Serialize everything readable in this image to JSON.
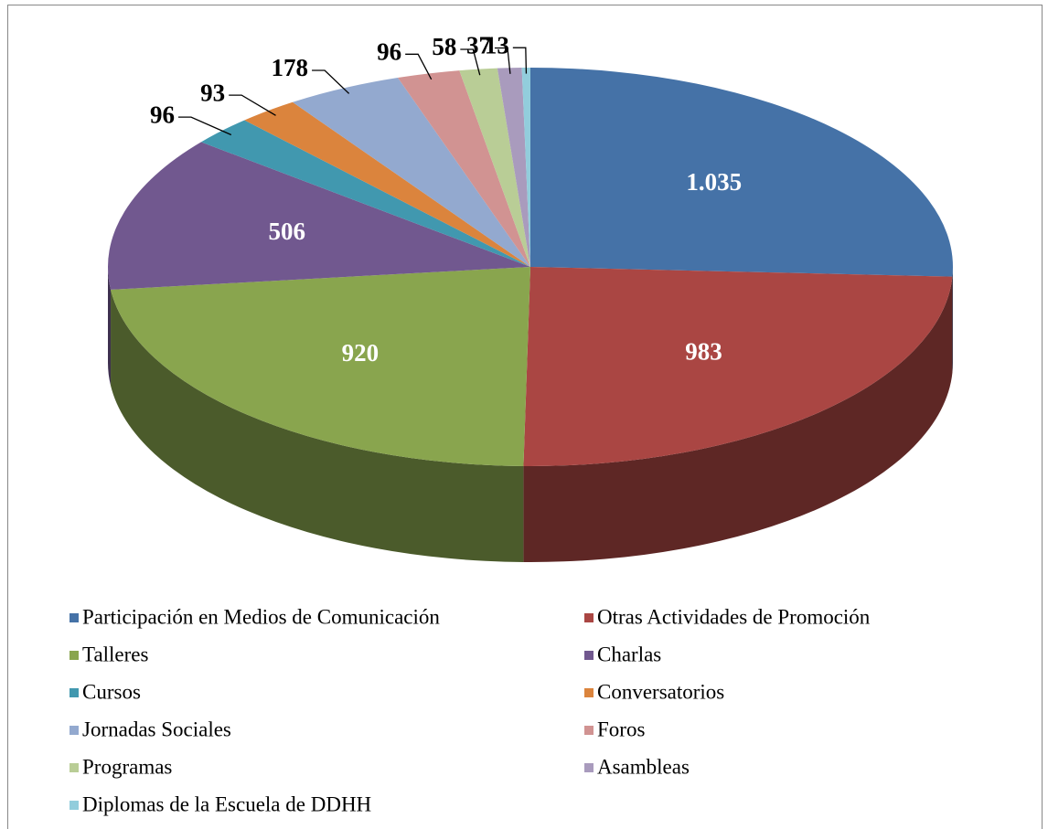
{
  "chart_data": {
    "type": "pie",
    "categories": [
      "Participación en Medios de Comunicación",
      "Otras Actividades de Promoción",
      "Talleres",
      "Charlas",
      "Cursos",
      "Conversatorios",
      "Jornadas Sociales",
      "Foros",
      "Programas",
      "Asambleas",
      "Diplomas de la Escuela de DDHH"
    ],
    "values": [
      1035,
      983,
      920,
      506,
      96,
      93,
      178,
      96,
      58,
      37,
      13
    ],
    "value_labels": [
      "1.035",
      "983",
      "920",
      "506",
      "96",
      "93",
      "178",
      "96",
      "58",
      "37",
      "13"
    ],
    "colors": [
      "#4572a7",
      "#aa4643",
      "#89a54e",
      "#71588f",
      "#4198af",
      "#db843d",
      "#93a9cf",
      "#d19392",
      "#b9cd96",
      "#a99bbd",
      "#92cddc"
    ],
    "legend": "bottom"
  }
}
